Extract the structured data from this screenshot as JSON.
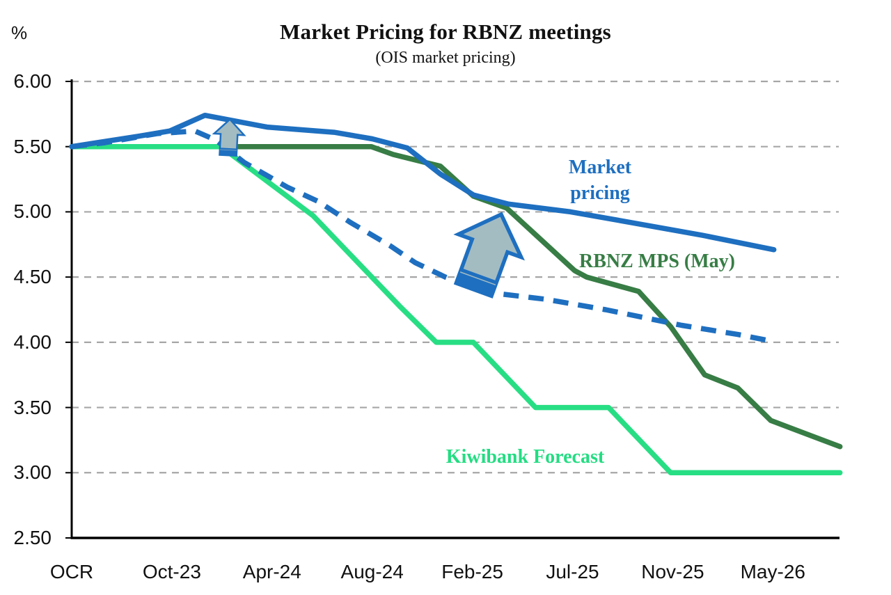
{
  "chart": {
    "title": "Market Pricing  for RBNZ meetings",
    "subtitle": "(OIS market pricing)",
    "y_unit": "%"
  },
  "series_labels": {
    "market_line1": "Market",
    "market_line2": "pricing",
    "rbnz": "RBNZ MPS (May)",
    "kiwibank": "Kiwibank Forecast"
  },
  "colors": {
    "market_blue": "#1e6fc0",
    "rbnz_green": "#377d45",
    "kiwibank_green": "#28de84",
    "gridline_gray": "#a6a6a6",
    "axis_black": "#000000",
    "arrow_fill": "#a3bcc2"
  },
  "chart_data": {
    "type": "line",
    "title": "Market Pricing  for RBNZ meetings",
    "subtitle": "(OIS market pricing)",
    "ylabel": "%",
    "ylim": [
      2.5,
      6.0
    ],
    "y_ticks": [
      6.0,
      5.5,
      5.0,
      4.5,
      4.0,
      3.5,
      3.0,
      2.5
    ],
    "y_tick_labels": [
      "6.00",
      "5.50",
      "5.00",
      "4.50",
      "4.00",
      "3.50",
      "3.00",
      "2.50"
    ],
    "categories": [
      "OCR",
      "Oct-23",
      "Apr-24",
      "Aug-24",
      "Feb-25",
      "Jul-25",
      "Nov-25",
      "May-26"
    ],
    "x_note": "x in meeting-axis units: 0=OCR, 1=Oct-23, 2=Apr-24, 3=Aug-24, 4=Feb-25, 5=Jul-25, 6=Nov-25, 7=May-26",
    "grid": "horizontal-dashed",
    "legend_position": "inline-labels",
    "series": [
      {
        "name": "Kiwibank Forecast",
        "color": "#28de84",
        "style": "solid",
        "points": [
          [
            0,
            5.5
          ],
          [
            1.49,
            5.5
          ],
          [
            2.41,
            4.97
          ],
          [
            3.27,
            4.28
          ],
          [
            3.64,
            4.0
          ],
          [
            4.01,
            4.0
          ],
          [
            4.63,
            3.5
          ],
          [
            5.36,
            3.5
          ],
          [
            5.98,
            3.0
          ],
          [
            7.67,
            3.0
          ]
        ]
      },
      {
        "name": "RBNZ MPS (May)",
        "color": "#377d45",
        "style": "solid",
        "points": [
          [
            1.58,
            5.5
          ],
          [
            2.99,
            5.5
          ],
          [
            3.21,
            5.44
          ],
          [
            3.68,
            5.35
          ],
          [
            4.01,
            5.12
          ],
          [
            4.34,
            5.03
          ],
          [
            5.02,
            4.55
          ],
          [
            5.14,
            4.5
          ],
          [
            5.66,
            4.39
          ],
          [
            5.98,
            4.12
          ],
          [
            6.32,
            3.75
          ],
          [
            6.65,
            3.65
          ],
          [
            6.98,
            3.4
          ],
          [
            7.67,
            3.2
          ]
        ]
      },
      {
        "name": "Market pricing (dashed, earlier pricing)",
        "color": "#1e6fc0",
        "style": "dashed",
        "points": [
          [
            0,
            5.5
          ],
          [
            0.33,
            5.53
          ],
          [
            0.85,
            5.6
          ],
          [
            1.23,
            5.62
          ],
          [
            1.44,
            5.55
          ],
          [
            1.72,
            5.38
          ],
          [
            2.15,
            5.19
          ],
          [
            2.46,
            5.08
          ],
          [
            2.78,
            4.92
          ],
          [
            3.18,
            4.74
          ],
          [
            3.43,
            4.61
          ],
          [
            3.73,
            4.5
          ],
          [
            3.99,
            4.42
          ],
          [
            4.29,
            4.37
          ],
          [
            4.73,
            4.33
          ],
          [
            5.33,
            4.25
          ],
          [
            6.09,
            4.13
          ],
          [
            6.65,
            4.06
          ],
          [
            6.98,
            4.01
          ]
        ]
      },
      {
        "name": "Market pricing",
        "color": "#1e6fc0",
        "style": "solid",
        "points": [
          [
            0,
            5.5
          ],
          [
            0.67,
            5.58
          ],
          [
            0.98,
            5.62
          ],
          [
            1.33,
            5.74
          ],
          [
            1.95,
            5.65
          ],
          [
            2.62,
            5.61
          ],
          [
            3.0,
            5.56
          ],
          [
            3.35,
            5.49
          ],
          [
            3.68,
            5.29
          ],
          [
            4.01,
            5.13
          ],
          [
            4.36,
            5.06
          ],
          [
            4.98,
            5.0
          ],
          [
            5.57,
            4.92
          ],
          [
            6.3,
            4.82
          ],
          [
            7.01,
            4.71
          ]
        ]
      }
    ],
    "annotations": [
      {
        "type": "up-arrow",
        "x": 1.57,
        "value": 5.57,
        "scale": 0.45,
        "rotation": 3
      },
      {
        "type": "up-arrow",
        "x": 4.15,
        "value": 4.69,
        "scale": 1.0,
        "rotation": 20
      }
    ]
  }
}
